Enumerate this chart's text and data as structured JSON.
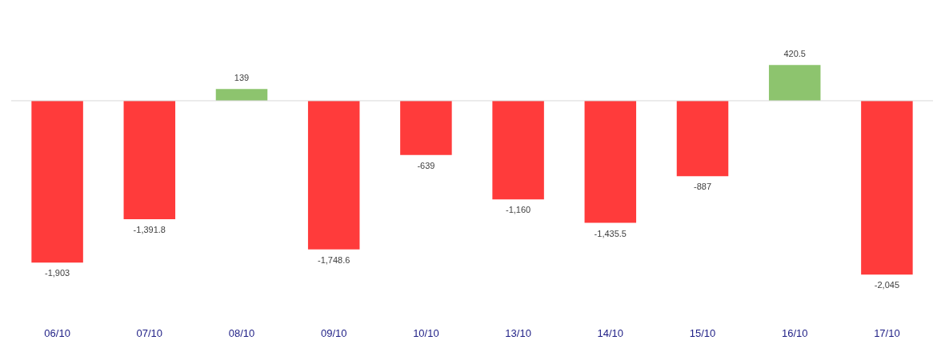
{
  "chart_data": {
    "type": "bar",
    "categories": [
      "06/10",
      "07/10",
      "08/10",
      "09/10",
      "10/10",
      "13/10",
      "14/10",
      "15/10",
      "16/10",
      "17/10"
    ],
    "values": [
      -1903,
      -1391.8,
      139,
      -1748.6,
      -639,
      -1160,
      -1435.5,
      -887,
      420.5,
      -2045
    ],
    "colors": [
      "#ff3b3b",
      "#ff3b3b",
      "#8dc46e",
      "#ff3b3b",
      "#ff3b3b",
      "#ff3b3b",
      "#ff3b3b",
      "#ff3b3b",
      "#8dc46e",
      "#ff3b3b"
    ],
    "value_labels": [
      "-1,903",
      "-1,391.8",
      "139",
      "-1,748.6",
      "-639",
      "-1,160",
      "-1,435.5",
      "-887",
      "420.5",
      "-2,045"
    ],
    "ref_lines": [
      {
        "axis": "y",
        "value": 0,
        "color": "#d9d9d9"
      }
    ],
    "tick_labels": "x"
  }
}
